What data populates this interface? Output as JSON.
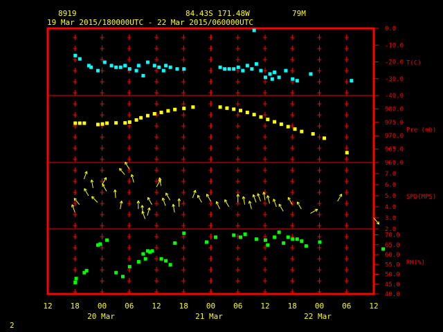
{
  "header": {
    "station_id": "8919",
    "location": "84.43S  171.48W",
    "elevation": "79M",
    "time_range": "19 Mar 2015/180000UTC - 22 Mar 2015/060000UTC"
  },
  "footer": {
    "page_number": "2"
  },
  "colors": {
    "frame": "#ff0000",
    "ticks": "#ff0000",
    "text": "#ffff00",
    "temperature": "#00ffff",
    "pressure": "#ffff00",
    "wind": "#ffff00",
    "rh": "#00ff00"
  },
  "chart_data": [
    {
      "type": "scatter",
      "panel": "temperature",
      "ylabel": "T(C)",
      "yticks": [
        "0.0",
        "-10.0",
        "-20.0",
        "-30.0",
        "-40.0"
      ],
      "ylim": [
        -40,
        0
      ],
      "x_hours": [
        18,
        19,
        21,
        21.5,
        23,
        24.5,
        26,
        27,
        28,
        29,
        30,
        31.5,
        32,
        33,
        34,
        35.5,
        36.5,
        37.5,
        38,
        39,
        40.5,
        42,
        50,
        51,
        52,
        53,
        54,
        55,
        56,
        57,
        57.5,
        58,
        59,
        60,
        61,
        61.5,
        62,
        63,
        64.5,
        66,
        67,
        70,
        79
      ],
      "values": [
        -16,
        -18,
        -22,
        -23,
        -25,
        -20,
        -22,
        -23,
        -23,
        -22,
        -24,
        -25,
        -22,
        -28,
        -20,
        -22,
        -23,
        -25,
        -22,
        -23,
        -24,
        -24,
        -23,
        -24,
        -24,
        -24,
        -23,
        -25,
        -22,
        -24,
        -1,
        -21,
        -25,
        -29,
        -27,
        -30,
        -26,
        -29,
        -25,
        -30,
        -31,
        -27,
        -31
      ]
    },
    {
      "type": "scatter",
      "panel": "pressure",
      "ylabel": "Pre (mb)",
      "yticks": [
        "980.0",
        "975.0",
        "970.0",
        "965.0",
        "960.0"
      ],
      "ylim": [
        960,
        985
      ],
      "x_hours": [
        18,
        19,
        20,
        23,
        24,
        25,
        27,
        29,
        30,
        31.5,
        32.5,
        34,
        35.5,
        37,
        38.5,
        40,
        42,
        44,
        50,
        51.5,
        53,
        54.5,
        56,
        57.5,
        59,
        60.5,
        62,
        63.5,
        65,
        66.5,
        68,
        70.5,
        73,
        78
      ],
      "values": [
        974.8,
        974.8,
        974.8,
        974.3,
        974.5,
        974.8,
        974.9,
        974.9,
        975.2,
        976.0,
        976.8,
        977.6,
        978.3,
        978.8,
        979.4,
        979.9,
        980.3,
        980.8,
        980.8,
        980.4,
        980.0,
        979.5,
        978.8,
        978.0,
        977.1,
        976.2,
        975.3,
        974.4,
        973.5,
        972.6,
        971.7,
        970.8,
        969.2,
        963.8
      ]
    },
    {
      "type": "vector",
      "panel": "wind",
      "ylabel": "SPD(MPS)",
      "yticks": [
        "7.0",
        "6.0",
        "5.0",
        "4.0",
        "3.0",
        "2.0"
      ],
      "ylim": [
        2,
        8
      ],
      "x_hours": [
        18,
        19,
        20,
        21,
        22,
        23,
        24,
        25,
        27,
        28,
        29,
        30,
        31,
        32,
        33,
        33.5,
        34,
        35,
        36,
        37,
        38,
        39,
        40,
        41,
        44,
        46,
        48,
        50,
        52,
        54,
        55.5,
        57,
        58,
        59,
        60,
        61,
        62.5,
        64,
        66,
        68,
        70,
        76,
        84
      ],
      "speeds": [
        3.5,
        4.2,
        6.5,
        5.0,
        5.7,
        4.4,
        6.0,
        5.4,
        4.8,
        3.8,
        6.9,
        7.4,
        6.2,
        3.8,
        3.4,
        2.9,
        3.2,
        4.2,
        5.8,
        5.9,
        4.1,
        4.6,
        3.5,
        4.0,
        4.8,
        4.4,
        4.5,
        3.8,
        4.0,
        4.4,
        4.2,
        3.8,
        4.4,
        4.5,
        4.6,
        4.3,
        4.0,
        3.6,
        4.2,
        3.8,
        3.4,
        4.5,
        3.0
      ],
      "directions_deg": [
        160,
        140,
        200,
        150,
        170,
        135,
        210,
        150,
        175,
        190,
        140,
        150,
        165,
        180,
        175,
        160,
        195,
        150,
        210,
        170,
        160,
        150,
        170,
        180,
        200,
        150,
        150,
        155,
        150,
        180,
        170,
        165,
        160,
        160,
        170,
        165,
        160,
        150,
        150,
        150,
        240,
        210,
        320
      ]
    },
    {
      "type": "scatter",
      "panel": "relative_humidity",
      "ylabel": "RH(%)",
      "yticks": [
        "70.0",
        "65.0",
        "60.0",
        "55.0",
        "50.0",
        "45.0",
        "40.0"
      ],
      "ylim": [
        40,
        73
      ],
      "x_hours": [
        18,
        18.2,
        20,
        20.5,
        23,
        23.5,
        25,
        27,
        28.5,
        30,
        32,
        33,
        33.5,
        34,
        34.5,
        35,
        37,
        38,
        39,
        40,
        42,
        47,
        49,
        53,
        54.5,
        55.5,
        58,
        60,
        60.5,
        62,
        63,
        64,
        65,
        66,
        67,
        68,
        69,
        72,
        86
      ],
      "values": [
        46,
        48,
        51,
        52,
        65,
        65.5,
        67.5,
        51,
        49,
        54,
        56.5,
        60.5,
        58,
        62,
        61.5,
        62,
        58,
        57,
        55,
        66,
        71,
        66.5,
        69,
        70,
        69,
        70.5,
        68,
        67.5,
        65,
        69,
        71.5,
        66,
        69,
        68,
        68,
        67,
        64.5,
        66.5,
        63
      ]
    }
  ],
  "x_axis": {
    "tick_labels": [
      "12",
      "18",
      "00",
      "06",
      "12",
      "18",
      "00",
      "06",
      "12",
      "18",
      "00",
      "06",
      "12"
    ],
    "day_labels": [
      "20 Mar",
      "21 Mar",
      "22 Mar"
    ]
  }
}
